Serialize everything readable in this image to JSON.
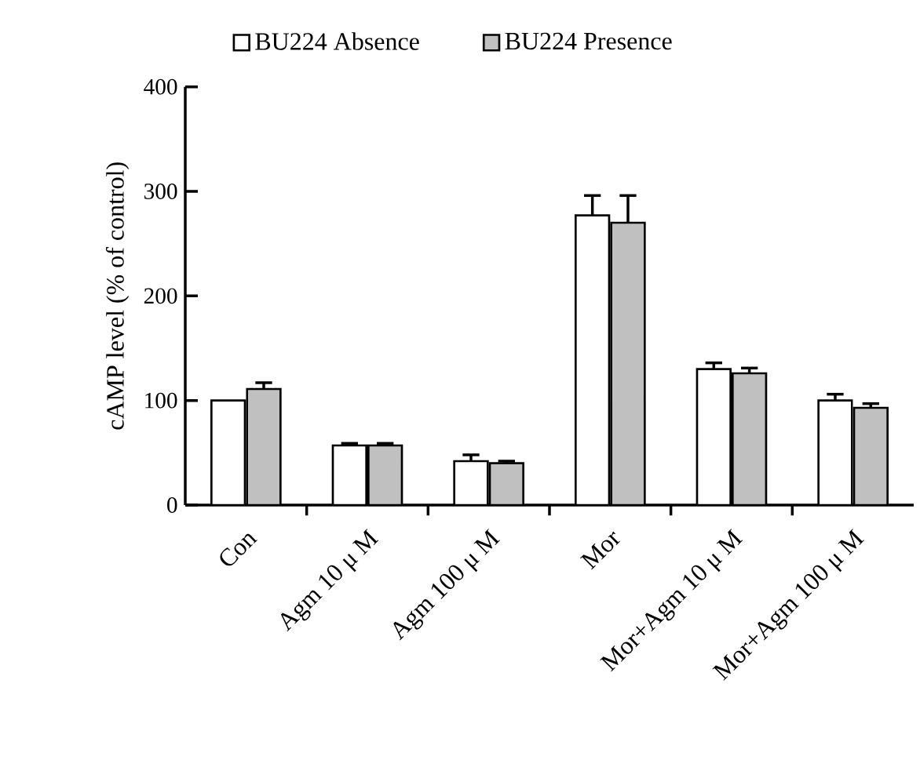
{
  "chart_data": {
    "type": "bar",
    "ylabel": "cAMP level (% of control)",
    "categories": [
      "Con",
      "Agm 10 μ M",
      "Agm 100 μ M",
      "Mor",
      "Mor+Agm 10 μ M",
      "Mor+Agm 100 μ M"
    ],
    "series": [
      {
        "name": "BU224 Absence",
        "color": "#ffffff",
        "values": [
          100,
          57,
          42,
          277,
          130,
          100
        ],
        "errors": [
          null,
          2,
          6,
          19,
          6,
          6
        ]
      },
      {
        "name": "BU224 Presence",
        "color": "#c0c0c0",
        "values": [
          111,
          57,
          40,
          270,
          126,
          93
        ],
        "errors": [
          6,
          2,
          2,
          26,
          5,
          4
        ]
      }
    ],
    "ylim": [
      0,
      400
    ],
    "yticks": [
      0,
      100,
      200,
      300,
      400
    ],
    "grid": false,
    "legend": "top"
  }
}
